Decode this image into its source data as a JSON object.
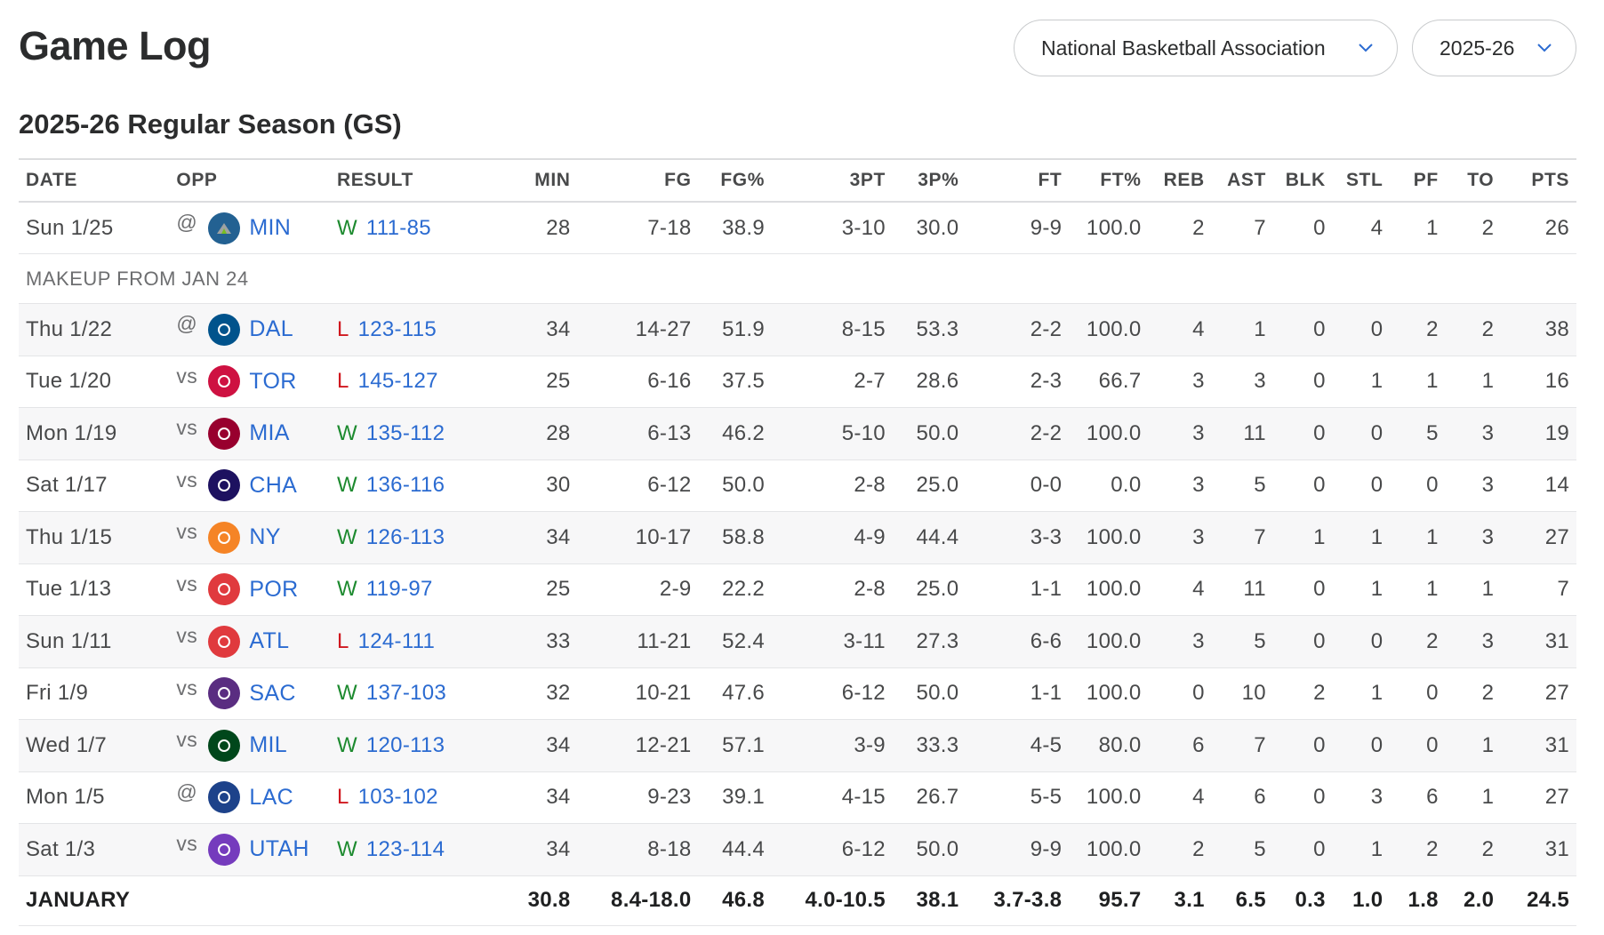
{
  "page": {
    "title": "Game Log",
    "league_select": "National Basketball Association",
    "season_select": "2025-26",
    "section_title": "2025-26 Regular Season (GS)"
  },
  "table": {
    "headers": {
      "date": "DATE",
      "opp": "OPP",
      "result": "RESULT",
      "min": "MIN",
      "fg": "FG",
      "fgp": "FG%",
      "tp": "3PT",
      "tpp": "3P%",
      "ft": "FT",
      "ftp": "FT%",
      "reb": "REB",
      "ast": "AST",
      "blk": "BLK",
      "stl": "STL",
      "pf": "PF",
      "to": "TO",
      "pts": "PTS"
    },
    "first_game": {
      "date": "Sun 1/25",
      "ha": "@",
      "team": "MIN",
      "wl": "W",
      "score": "111-85",
      "min": "28",
      "fg": "7-18",
      "fgp": "38.9",
      "tp": "3-10",
      "tpp": "30.0",
      "ft": "9-9",
      "ftp": "100.0",
      "reb": "2",
      "ast": "7",
      "blk": "0",
      "stl": "4",
      "pf": "1",
      "to": "2",
      "pts": "26",
      "logo_color": "#236192"
    },
    "note": "MAKEUP FROM JAN 24",
    "games": [
      {
        "date": "Thu 1/22",
        "ha": "@",
        "team": "DAL",
        "wl": "L",
        "score": "123-115",
        "min": "34",
        "fg": "14-27",
        "fgp": "51.9",
        "tp": "8-15",
        "tpp": "53.3",
        "ft": "2-2",
        "ftp": "100.0",
        "reb": "4",
        "ast": "1",
        "blk": "0",
        "stl": "0",
        "pf": "2",
        "to": "2",
        "pts": "38",
        "logo_color": "#00538C"
      },
      {
        "date": "Tue 1/20",
        "ha": "vs",
        "team": "TOR",
        "wl": "L",
        "score": "145-127",
        "min": "25",
        "fg": "6-16",
        "fgp": "37.5",
        "tp": "2-7",
        "tpp": "28.6",
        "ft": "2-3",
        "ftp": "66.7",
        "reb": "3",
        "ast": "3",
        "blk": "0",
        "stl": "1",
        "pf": "1",
        "to": "1",
        "pts": "16",
        "logo_color": "#CE1141"
      },
      {
        "date": "Mon 1/19",
        "ha": "vs",
        "team": "MIA",
        "wl": "W",
        "score": "135-112",
        "min": "28",
        "fg": "6-13",
        "fgp": "46.2",
        "tp": "5-10",
        "tpp": "50.0",
        "ft": "2-2",
        "ftp": "100.0",
        "reb": "3",
        "ast": "11",
        "blk": "0",
        "stl": "0",
        "pf": "5",
        "to": "3",
        "pts": "19",
        "logo_color": "#98002E"
      },
      {
        "date": "Sat 1/17",
        "ha": "vs",
        "team": "CHA",
        "wl": "W",
        "score": "136-116",
        "min": "30",
        "fg": "6-12",
        "fgp": "50.0",
        "tp": "2-8",
        "tpp": "25.0",
        "ft": "0-0",
        "ftp": "0.0",
        "reb": "3",
        "ast": "5",
        "blk": "0",
        "stl": "0",
        "pf": "0",
        "to": "3",
        "pts": "14",
        "logo_color": "#1D1160"
      },
      {
        "date": "Thu 1/15",
        "ha": "vs",
        "team": "NY",
        "wl": "W",
        "score": "126-113",
        "min": "34",
        "fg": "10-17",
        "fgp": "58.8",
        "tp": "4-9",
        "tpp": "44.4",
        "ft": "3-3",
        "ftp": "100.0",
        "reb": "3",
        "ast": "7",
        "blk": "1",
        "stl": "1",
        "pf": "1",
        "to": "3",
        "pts": "27",
        "logo_color": "#F58426"
      },
      {
        "date": "Tue 1/13",
        "ha": "vs",
        "team": "POR",
        "wl": "W",
        "score": "119-97",
        "min": "25",
        "fg": "2-9",
        "fgp": "22.2",
        "tp": "2-8",
        "tpp": "25.0",
        "ft": "1-1",
        "ftp": "100.0",
        "reb": "4",
        "ast": "11",
        "blk": "0",
        "stl": "1",
        "pf": "1",
        "to": "1",
        "pts": "7",
        "logo_color": "#E03A3E"
      },
      {
        "date": "Sun 1/11",
        "ha": "vs",
        "team": "ATL",
        "wl": "L",
        "score": "124-111",
        "min": "33",
        "fg": "11-21",
        "fgp": "52.4",
        "tp": "3-11",
        "tpp": "27.3",
        "ft": "6-6",
        "ftp": "100.0",
        "reb": "3",
        "ast": "5",
        "blk": "0",
        "stl": "0",
        "pf": "2",
        "to": "3",
        "pts": "31",
        "logo_color": "#E03A3E"
      },
      {
        "date": "Fri 1/9",
        "ha": "vs",
        "team": "SAC",
        "wl": "W",
        "score": "137-103",
        "min": "32",
        "fg": "10-21",
        "fgp": "47.6",
        "tp": "6-12",
        "tpp": "50.0",
        "ft": "1-1",
        "ftp": "100.0",
        "reb": "0",
        "ast": "10",
        "blk": "2",
        "stl": "1",
        "pf": "0",
        "to": "2",
        "pts": "27",
        "logo_color": "#5A2D81"
      },
      {
        "date": "Wed 1/7",
        "ha": "vs",
        "team": "MIL",
        "wl": "W",
        "score": "120-113",
        "min": "34",
        "fg": "12-21",
        "fgp": "57.1",
        "tp": "3-9",
        "tpp": "33.3",
        "ft": "4-5",
        "ftp": "80.0",
        "reb": "6",
        "ast": "7",
        "blk": "0",
        "stl": "0",
        "pf": "0",
        "to": "1",
        "pts": "31",
        "logo_color": "#00471B"
      },
      {
        "date": "Mon 1/5",
        "ha": "@",
        "team": "LAC",
        "wl": "L",
        "score": "103-102",
        "min": "34",
        "fg": "9-23",
        "fgp": "39.1",
        "tp": "4-15",
        "tpp": "26.7",
        "ft": "5-5",
        "ftp": "100.0",
        "reb": "4",
        "ast": "6",
        "blk": "0",
        "stl": "3",
        "pf": "6",
        "to": "1",
        "pts": "27",
        "logo_color": "#1D428A"
      },
      {
        "date": "Sat 1/3",
        "ha": "vs",
        "team": "UTAH",
        "wl": "W",
        "score": "123-114",
        "min": "34",
        "fg": "8-18",
        "fgp": "44.4",
        "tp": "6-12",
        "tpp": "50.0",
        "ft": "9-9",
        "ftp": "100.0",
        "reb": "2",
        "ast": "5",
        "blk": "0",
        "stl": "1",
        "pf": "2",
        "to": "2",
        "pts": "31",
        "logo_color": "#753BBD"
      }
    ],
    "summary": {
      "label": "JANUARY",
      "min": "30.8",
      "fg": "8.4-18.0",
      "fgp": "46.8",
      "tp": "4.0-10.5",
      "tpp": "38.1",
      "ft": "3.7-3.8",
      "ftp": "95.7",
      "reb": "3.1",
      "ast": "6.5",
      "blk": "0.3",
      "stl": "1.0",
      "pf": "1.8",
      "to": "2.0",
      "pts": "24.5"
    }
  },
  "colors": {
    "win": "#1d8a2f",
    "loss": "#d0181f",
    "link": "#2b6bd1"
  }
}
